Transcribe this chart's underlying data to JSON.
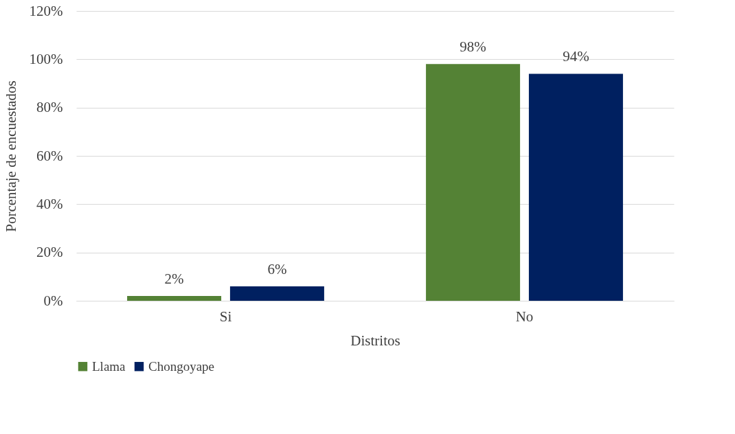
{
  "chart_data": {
    "type": "bar",
    "xlabel": "Distritos",
    "ylabel": "Porcentaje de encuestados",
    "categories": [
      "Si",
      "No"
    ],
    "series": [
      {
        "name": "Llama",
        "color": "#548235",
        "values": [
          2,
          98
        ],
        "value_labels": [
          "2%",
          "98%"
        ]
      },
      {
        "name": "Chongoyape",
        "color": "#002060",
        "values": [
          6,
          94
        ],
        "value_labels": [
          "6%",
          "94%"
        ]
      }
    ],
    "ylim": [
      0,
      120
    ],
    "yticks": [
      {
        "value": 0,
        "label": "0%"
      },
      {
        "value": 20,
        "label": "20%"
      },
      {
        "value": 40,
        "label": "40%"
      },
      {
        "value": 60,
        "label": "60%"
      },
      {
        "value": 80,
        "label": "80%"
      },
      {
        "value": 100,
        "label": "100%"
      },
      {
        "value": 120,
        "label": "120%"
      }
    ],
    "grid": "y",
    "legend": "bottom"
  }
}
